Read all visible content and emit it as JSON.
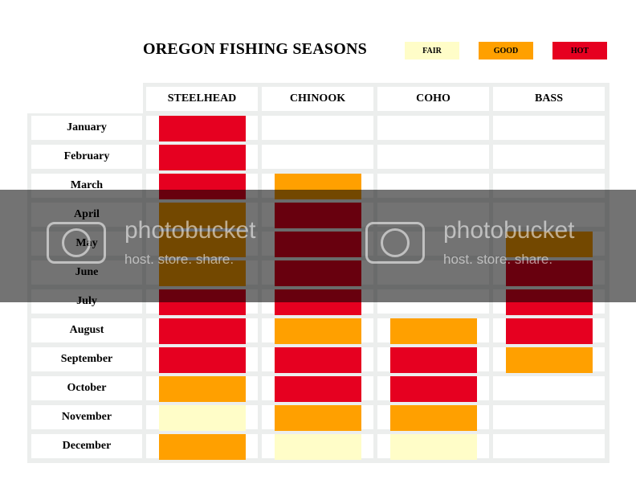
{
  "title": "OREGON FISHING SEASONS",
  "legend": [
    {
      "label": "FAIR",
      "color": "#fffdc8"
    },
    {
      "label": "GOOD",
      "color": "#ffa000"
    },
    {
      "label": "HOT",
      "color": "#e60020"
    }
  ],
  "watermark": {
    "brand": "photobucket",
    "tagline": "host. store. share."
  },
  "chart_data": {
    "type": "table",
    "title": "OREGON FISHING SEASONS",
    "columns": [
      "STEELHEAD",
      "CHINOOK",
      "COHO",
      "BASS"
    ],
    "rows": [
      "January",
      "February",
      "March",
      "April",
      "May",
      "June",
      "July",
      "August",
      "September",
      "October",
      "November",
      "December"
    ],
    "levels": {
      "FAIR": "#fffdc8",
      "GOOD": "#ffa000",
      "HOT": "#e60020"
    },
    "values": [
      [
        "HOT",
        "",
        "",
        ""
      ],
      [
        "HOT",
        "",
        "",
        ""
      ],
      [
        "HOT",
        "GOOD",
        "",
        ""
      ],
      [
        "GOOD",
        "HOT",
        "",
        ""
      ],
      [
        "GOOD",
        "HOT",
        "",
        "GOOD"
      ],
      [
        "GOOD",
        "HOT",
        "",
        "HOT"
      ],
      [
        "HOT",
        "HOT",
        "",
        "HOT"
      ],
      [
        "HOT",
        "GOOD",
        "GOOD",
        "HOT"
      ],
      [
        "HOT",
        "HOT",
        "HOT",
        "GOOD"
      ],
      [
        "GOOD",
        "HOT",
        "HOT",
        ""
      ],
      [
        "FAIR",
        "GOOD",
        "GOOD",
        ""
      ],
      [
        "GOOD",
        "FAIR",
        "FAIR",
        ""
      ]
    ]
  }
}
